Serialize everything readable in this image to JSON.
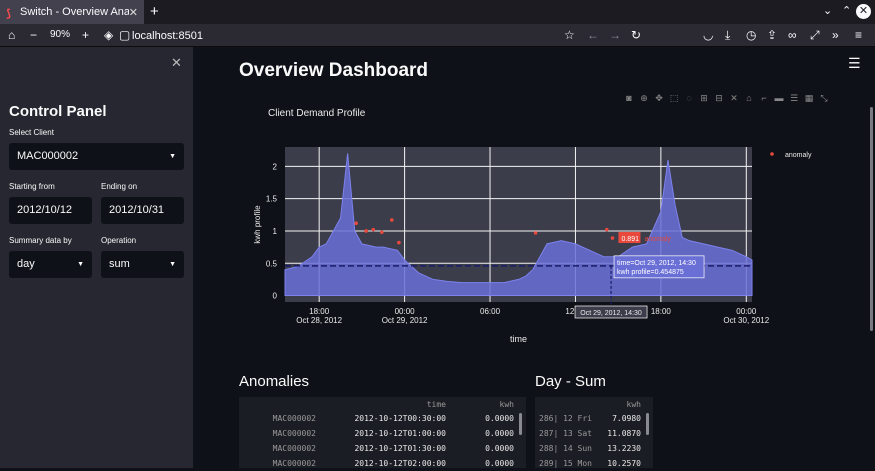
{
  "browser": {
    "tab_title": "Switch - Overview Analysis",
    "tab_close": "✕",
    "new_tab": "+",
    "zoom_minus": "−",
    "zoom_level": "90%",
    "zoom_plus": "+",
    "url": "localhost:8501"
  },
  "sidebar": {
    "close": "✕",
    "title": "Control Panel",
    "client_label": "Select Client",
    "client_value": "MAC000002",
    "start_label": "Starting from",
    "start_value": "2012/10/12",
    "end_label": "Ending on",
    "end_value": "2012/10/31",
    "summary_label": "Summary data by",
    "summary_value": "day",
    "operation_label": "Operation",
    "operation_value": "sum"
  },
  "main": {
    "menu": "☰",
    "title": "Overview Dashboard"
  },
  "chart_data": {
    "type": "area",
    "title": "Client Demand Profile",
    "xlabel": "time",
    "ylabel": "kwh profile",
    "ylim": [
      -0.1,
      2.3
    ],
    "y_ticks": [
      "0",
      "0.5",
      "1",
      "1.5",
      "2"
    ],
    "x_ticks": [
      {
        "label": "18:00",
        "sub": "Oct 28, 2012",
        "t": 18
      },
      {
        "label": "00:00",
        "sub": "Oct 29, 2012",
        "t": 24
      },
      {
        "label": "06:00",
        "sub": "",
        "t": 30
      },
      {
        "label": "12:00",
        "sub": "",
        "t": 36
      },
      {
        "label": "18:00",
        "sub": "",
        "t": 42
      },
      {
        "label": "00:00",
        "sub": "Oct 30, 2012",
        "t": 48
      }
    ],
    "x_range": [
      15.6,
      48.4
    ],
    "grid": true,
    "legend": {
      "position": "top-right",
      "entries": [
        "anomaly"
      ]
    },
    "series": [
      {
        "name": "",
        "color": "#6a6fd6",
        "x": [
          15.6,
          16.5,
          17.5,
          18,
          18.5,
          19,
          19.5,
          20,
          20.5,
          21,
          22,
          22.5,
          23.5,
          24,
          25,
          25.5,
          26,
          27,
          28,
          29,
          30,
          31,
          32,
          32.5,
          33,
          34,
          35,
          36,
          37,
          38,
          39,
          40,
          41,
          42,
          42.5,
          43,
          43.5,
          44,
          45,
          46,
          47,
          48,
          48.4
        ],
        "values": [
          0.4,
          0.45,
          0.6,
          0.75,
          0.8,
          1.0,
          1.2,
          2.2,
          1.0,
          0.8,
          0.75,
          0.75,
          0.7,
          0.55,
          0.35,
          0.3,
          0.25,
          0.22,
          0.2,
          0.2,
          0.2,
          0.2,
          0.25,
          0.3,
          0.4,
          0.8,
          0.85,
          0.8,
          0.7,
          0.6,
          0.6,
          0.75,
          0.8,
          1.3,
          2.1,
          1.4,
          0.9,
          0.85,
          0.8,
          0.75,
          0.7,
          0.6,
          0.55
        ]
      }
    ],
    "anomalies": {
      "name": "anomaly",
      "color": "#e8493c",
      "x": [
        20.6,
        21.3,
        21.8,
        22.4,
        23.1,
        23.6,
        33.2,
        38.2,
        38.6
      ],
      "values": [
        1.12,
        1.0,
        1.02,
        0.98,
        1.17,
        0.82,
        0.97,
        1.02,
        0.891
      ]
    },
    "anomaly_label": {
      "value": "0.891",
      "series": "anomaly"
    },
    "mean_line": 0.46,
    "hover": {
      "time_label": "time=Oct 29, 2012, 14:30",
      "value_label": "kwh profile=0.454875",
      "x_label": "Oct 29, 2012, 14:30",
      "t": 38.5
    }
  },
  "anomalies_section": {
    "title": "Anomalies",
    "columns": [
      "",
      "time",
      "kwh"
    ],
    "rows": [
      [
        "MAC000002",
        "2012-10-12T00:30:00",
        "0.0000"
      ],
      [
        "MAC000002",
        "2012-10-12T01:00:00",
        "0.0000"
      ],
      [
        "MAC000002",
        "2012-10-12T01:30:00",
        "0.0000"
      ],
      [
        "MAC000002",
        "2012-10-12T02:00:00",
        "0.0000"
      ]
    ]
  },
  "day_sum_section": {
    "title": "Day - Sum",
    "columns": [
      "",
      "kwh"
    ],
    "rows": [
      [
        "286| 12 Fri",
        "7.0980"
      ],
      [
        "287| 13 Sat",
        "11.0870"
      ],
      [
        "288| 14 Sun",
        "13.2230"
      ],
      [
        "289| 15 Mon",
        "10.2570"
      ]
    ]
  }
}
